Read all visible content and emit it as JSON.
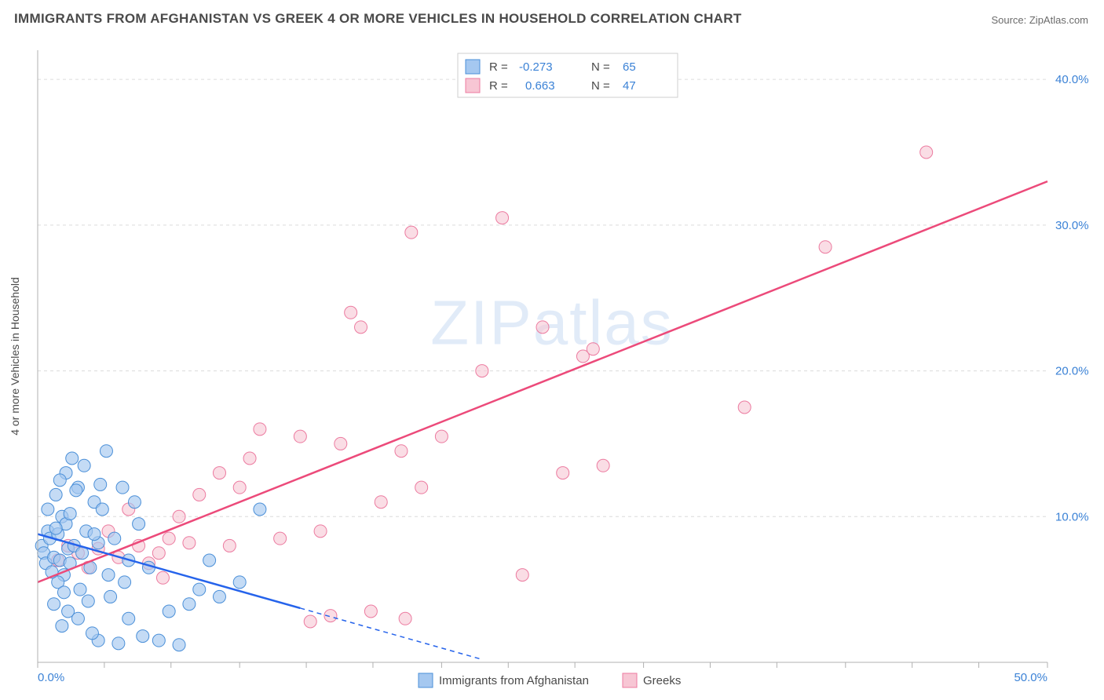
{
  "title": "IMMIGRANTS FROM AFGHANISTAN VS GREEK 4 OR MORE VEHICLES IN HOUSEHOLD CORRELATION CHART",
  "source_label": "Source: ZipAtlas.com",
  "watermark": "ZIPatlas",
  "y_axis_label": "4 or more Vehicles in Household",
  "y_ticks": [
    "10.0%",
    "20.0%",
    "30.0%",
    "40.0%"
  ],
  "x_ticks": [
    "0.0%",
    "50.0%"
  ],
  "legend": {
    "series_a": "Immigrants from Afghanistan",
    "series_b": "Greeks"
  },
  "stats": {
    "series_a": {
      "R_label": "R =",
      "R": "-0.273",
      "N_label": "N =",
      "N": "65"
    },
    "series_b": {
      "R_label": "R =",
      "R": "0.663",
      "N_label": "N =",
      "N": "47"
    }
  },
  "chart": {
    "type": "scatter",
    "xlim": [
      0,
      50
    ],
    "ylim": [
      0,
      42
    ],
    "grid_y_values": [
      10,
      20,
      30,
      40
    ],
    "background_color": "#ffffff",
    "grid_color": "#dcdcdc",
    "axis_color": "#b0b0b0",
    "series_a": {
      "marker_fill": "#a5c8f0",
      "marker_stroke": "#4a8fd8",
      "marker_radius": 8,
      "marker_opacity": 0.65,
      "trend_color": "#2563eb",
      "trend_width": 2.5,
      "trend_solid_end_x": 13,
      "trend": {
        "x1": 0,
        "y1": 8.8,
        "x2": 22,
        "y2": 0.2
      },
      "points": [
        [
          0.2,
          8.0
        ],
        [
          0.3,
          7.5
        ],
        [
          0.5,
          9.0
        ],
        [
          0.4,
          6.8
        ],
        [
          0.6,
          8.5
        ],
        [
          0.8,
          7.2
        ],
        [
          1.0,
          8.8
        ],
        [
          1.1,
          7.0
        ],
        [
          1.2,
          10.0
        ],
        [
          1.3,
          6.0
        ],
        [
          1.4,
          9.5
        ],
        [
          1.5,
          7.8
        ],
        [
          0.9,
          11.5
        ],
        [
          1.6,
          10.2
        ],
        [
          1.8,
          8.0
        ],
        [
          2.0,
          12.0
        ],
        [
          2.2,
          7.5
        ],
        [
          1.4,
          13.0
        ],
        [
          1.7,
          14.0
        ],
        [
          2.4,
          9.0
        ],
        [
          2.6,
          6.5
        ],
        [
          2.8,
          11.0
        ],
        [
          3.0,
          8.2
        ],
        [
          3.2,
          10.5
        ],
        [
          1.0,
          5.5
        ],
        [
          1.3,
          4.8
        ],
        [
          2.1,
          5.0
        ],
        [
          2.5,
          4.2
        ],
        [
          3.5,
          6.0
        ],
        [
          0.7,
          6.2
        ],
        [
          1.9,
          11.8
        ],
        [
          2.3,
          13.5
        ],
        [
          3.1,
          12.2
        ],
        [
          3.8,
          8.5
        ],
        [
          4.2,
          12.0
        ],
        [
          4.5,
          7.0
        ],
        [
          5.0,
          9.5
        ],
        [
          5.5,
          6.5
        ],
        [
          3.4,
          14.5
        ],
        [
          4.8,
          11.0
        ],
        [
          3.0,
          1.5
        ],
        [
          4.0,
          1.3
        ],
        [
          2.7,
          2.0
        ],
        [
          5.2,
          1.8
        ],
        [
          6.0,
          1.5
        ],
        [
          7.0,
          1.2
        ],
        [
          4.5,
          3.0
        ],
        [
          6.5,
          3.5
        ],
        [
          7.5,
          4.0
        ],
        [
          8.0,
          5.0
        ],
        [
          9.0,
          4.5
        ],
        [
          10.0,
          5.5
        ],
        [
          11.0,
          10.5
        ],
        [
          8.5,
          7.0
        ],
        [
          1.5,
          3.5
        ],
        [
          2.0,
          3.0
        ],
        [
          0.8,
          4.0
        ],
        [
          1.2,
          2.5
        ],
        [
          3.6,
          4.5
        ],
        [
          4.3,
          5.5
        ],
        [
          0.5,
          10.5
        ],
        [
          1.1,
          12.5
        ],
        [
          0.9,
          9.2
        ],
        [
          2.8,
          8.8
        ],
        [
          1.6,
          6.8
        ]
      ]
    },
    "series_b": {
      "marker_fill": "#f7c6d4",
      "marker_stroke": "#ec7ba0",
      "marker_radius": 8,
      "marker_opacity": 0.6,
      "trend_color": "#ec4a7a",
      "trend_width": 2.5,
      "trend": {
        "x1": 0,
        "y1": 5.5,
        "x2": 50,
        "y2": 33.0
      },
      "points": [
        [
          1.0,
          7.0
        ],
        [
          1.5,
          8.0
        ],
        [
          2.0,
          7.5
        ],
        [
          2.5,
          6.5
        ],
        [
          3.0,
          7.8
        ],
        [
          3.5,
          9.0
        ],
        [
          4.0,
          7.2
        ],
        [
          4.5,
          10.5
        ],
        [
          5.0,
          8.0
        ],
        [
          5.5,
          6.8
        ],
        [
          6.0,
          7.5
        ],
        [
          6.5,
          8.5
        ],
        [
          7.0,
          10.0
        ],
        [
          7.5,
          8.2
        ],
        [
          8.0,
          11.5
        ],
        [
          9.0,
          13.0
        ],
        [
          9.5,
          8.0
        ],
        [
          10.0,
          12.0
        ],
        [
          10.5,
          14.0
        ],
        [
          11.0,
          16.0
        ],
        [
          12.0,
          8.5
        ],
        [
          13.0,
          15.5
        ],
        [
          14.0,
          9.0
        ],
        [
          15.0,
          15.0
        ],
        [
          15.5,
          24.0
        ],
        [
          16.0,
          23.0
        ],
        [
          17.0,
          11.0
        ],
        [
          18.0,
          14.5
        ],
        [
          18.5,
          29.5
        ],
        [
          19.0,
          12.0
        ],
        [
          20.0,
          15.5
        ],
        [
          22.0,
          20.0
        ],
        [
          23.0,
          30.5
        ],
        [
          24.0,
          6.0
        ],
        [
          25.0,
          23.0
        ],
        [
          26.0,
          13.0
        ],
        [
          27.0,
          21.0
        ],
        [
          27.5,
          21.5
        ],
        [
          28.0,
          13.5
        ],
        [
          35.0,
          17.5
        ],
        [
          39.0,
          28.5
        ],
        [
          44.0,
          35.0
        ],
        [
          14.5,
          3.2
        ],
        [
          16.5,
          3.5
        ],
        [
          18.2,
          3.0
        ],
        [
          13.5,
          2.8
        ],
        [
          6.2,
          5.8
        ]
      ]
    },
    "x_tick_positions": [
      0,
      3.3,
      6.6,
      10,
      13.3,
      16.6,
      20,
      23.3,
      26.6,
      30,
      33.3,
      36.6,
      40,
      43.3,
      46.6,
      50
    ]
  }
}
